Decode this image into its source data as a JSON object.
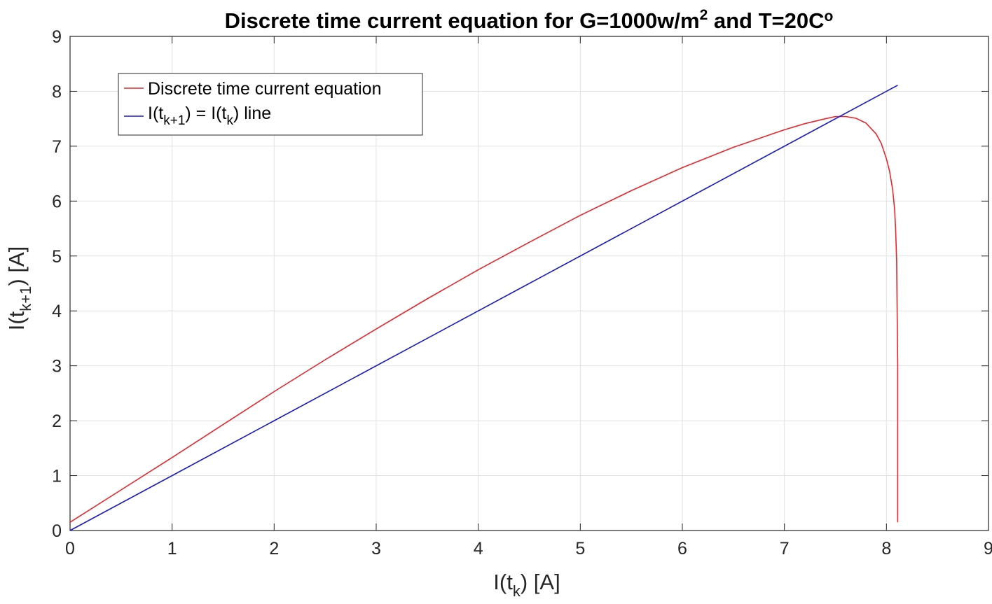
{
  "chart_data": {
    "type": "line",
    "title": {
      "main": "Discrete time current equation for G=1000w/m",
      "superscript": "2",
      "tail": " and T=20C",
      "degree": "o"
    },
    "xlabel": {
      "prefix": "I(t",
      "subscript": "k",
      "suffix": ") [A]"
    },
    "ylabel": {
      "prefix": "I(t",
      "subscript": "k+1",
      "suffix": ") [A]"
    },
    "xlim": [
      0,
      9
    ],
    "ylim": [
      0,
      9
    ],
    "xticks": [
      "0",
      "1",
      "2",
      "3",
      "4",
      "5",
      "6",
      "7",
      "8",
      "9"
    ],
    "yticks": [
      "0",
      "1",
      "2",
      "3",
      "4",
      "5",
      "6",
      "7",
      "8",
      "9"
    ],
    "grid": true,
    "legend_position": "top-left",
    "series": [
      {
        "name": "Discrete time current equation",
        "color": "#e8262b",
        "x": [
          0,
          0.5,
          1,
          1.5,
          2,
          2.5,
          3,
          3.5,
          4,
          4.5,
          5,
          5.5,
          6,
          6.5,
          7,
          7.2,
          7.4,
          7.5,
          7.6,
          7.7,
          7.8,
          7.9,
          7.95,
          8.0,
          8.03,
          8.06,
          8.08,
          8.09,
          8.1,
          8.11,
          8.11
        ],
        "y": [
          0.15,
          0.74,
          1.33,
          1.93,
          2.53,
          3.11,
          3.67,
          4.22,
          4.75,
          5.25,
          5.74,
          6.19,
          6.61,
          6.98,
          7.3,
          7.41,
          7.5,
          7.54,
          7.54,
          7.51,
          7.42,
          7.22,
          7.05,
          6.77,
          6.55,
          6.22,
          5.85,
          5.5,
          4.9,
          3.0,
          0.15
        ]
      },
      {
        "name_parts": {
          "a": "I(t",
          "a_sub": "k+1",
          "b": ") = I(t",
          "b_sub": "k",
          "c": ") line"
        },
        "color": "#1919c8",
        "x": [
          0,
          8.11
        ],
        "y": [
          0,
          8.11
        ]
      }
    ]
  }
}
